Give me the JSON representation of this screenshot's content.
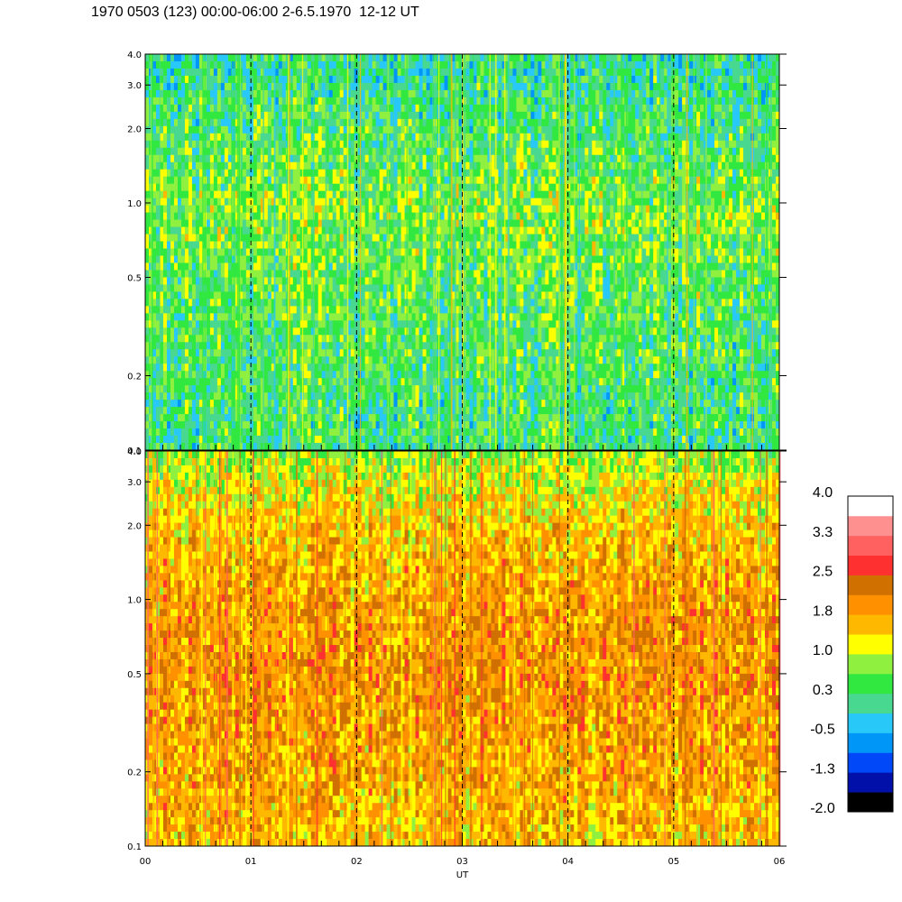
{
  "title": "1970 0503 (123) 00:00-06:00 2-6.5.1970  12-12 UT",
  "chart_data": [
    {
      "type": "heatmap",
      "panel": "top",
      "x_range": [
        "00",
        "06"
      ],
      "y_scale": "log",
      "ylim": [
        0.1,
        4.0
      ],
      "y_ticks": [
        "4.0",
        "3.0",
        "2.0",
        "1.0",
        "0.5",
        "0.2",
        "0.1"
      ],
      "y_tick_values": [
        4.0,
        3.0,
        2.0,
        1.0,
        0.5,
        0.2,
        0.1
      ],
      "x_ticks": [
        "00",
        "01",
        "02",
        "03",
        "04",
        "05",
        "06"
      ],
      "dashed_hour_lines": [
        "01",
        "02",
        "03",
        "04",
        "05"
      ],
      "dominant_level": 0.3,
      "profile_by_frequency": [
        {
          "y": 4.0,
          "level": 0.0
        },
        {
          "y": 2.0,
          "level": 0.3
        },
        {
          "y": 1.0,
          "level": 0.7
        },
        {
          "y": 0.5,
          "level": 0.5
        },
        {
          "y": 0.2,
          "level": 0.3
        },
        {
          "y": 0.1,
          "level": 0.2
        }
      ]
    },
    {
      "type": "heatmap",
      "panel": "bottom",
      "x_range": [
        "00",
        "06"
      ],
      "xlabel": "UT",
      "y_scale": "log",
      "ylim": [
        0.1,
        4.0
      ],
      "y_ticks": [
        "4.0",
        "3.0",
        "2.0",
        "1.0",
        "0.5",
        "0.2",
        "0.1"
      ],
      "y_tick_values": [
        4.0,
        3.0,
        2.0,
        1.0,
        0.5,
        0.2,
        0.1
      ],
      "x_ticks": [
        "00",
        "01",
        "02",
        "03",
        "04",
        "05",
        "06"
      ],
      "dashed_hour_lines": [
        "01",
        "02",
        "03",
        "04",
        "05"
      ],
      "dominant_level": 1.8,
      "profile_by_frequency": [
        {
          "y": 4.0,
          "level": 0.8
        },
        {
          "y": 2.0,
          "level": 1.5
        },
        {
          "y": 1.0,
          "level": 1.9
        },
        {
          "y": 0.5,
          "level": 2.0
        },
        {
          "y": 0.2,
          "level": 1.8
        },
        {
          "y": 0.1,
          "level": 1.6
        }
      ]
    }
  ],
  "colorbar": {
    "labels": [
      "4.0",
      "3.3",
      "2.5",
      "1.8",
      "1.0",
      "0.3",
      "-0.5",
      "-1.3",
      "-2.0"
    ],
    "colors": [
      "#000000",
      "#0010a8",
      "#0048f8",
      "#0096f8",
      "#28c8f8",
      "#48d890",
      "#30e840",
      "#90f040",
      "#ffff00",
      "#ffb800",
      "#ff9000",
      "#d07000",
      "#ff3030",
      "#ff6060",
      "#ff9090",
      "#ffffff"
    ]
  }
}
